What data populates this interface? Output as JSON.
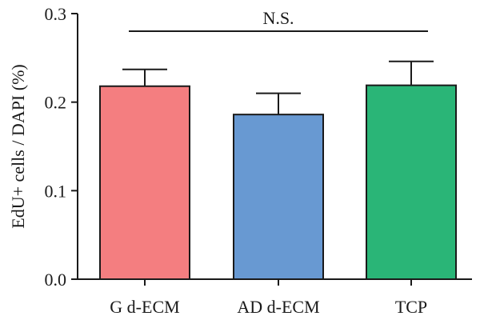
{
  "chart_data": {
    "type": "bar",
    "title": "",
    "xlabel": "",
    "ylabel": "EdU+ cells / DAPI (%)",
    "ylim": [
      0,
      0.3
    ],
    "yticks": [
      0.0,
      0.1,
      0.2,
      0.3
    ],
    "ytick_labels": [
      "0.0",
      "0.1",
      "0.2",
      "0.3"
    ],
    "categories": [
      "G d-ECM",
      "AD d-ECM",
      "TCP"
    ],
    "values": [
      0.218,
      0.186,
      0.219
    ],
    "errors": [
      0.019,
      0.024,
      0.027
    ],
    "colors": [
      "#f47e80",
      "#6899d2",
      "#2ab577"
    ],
    "annotation": "N.S.",
    "grid": false,
    "legend": "none"
  }
}
